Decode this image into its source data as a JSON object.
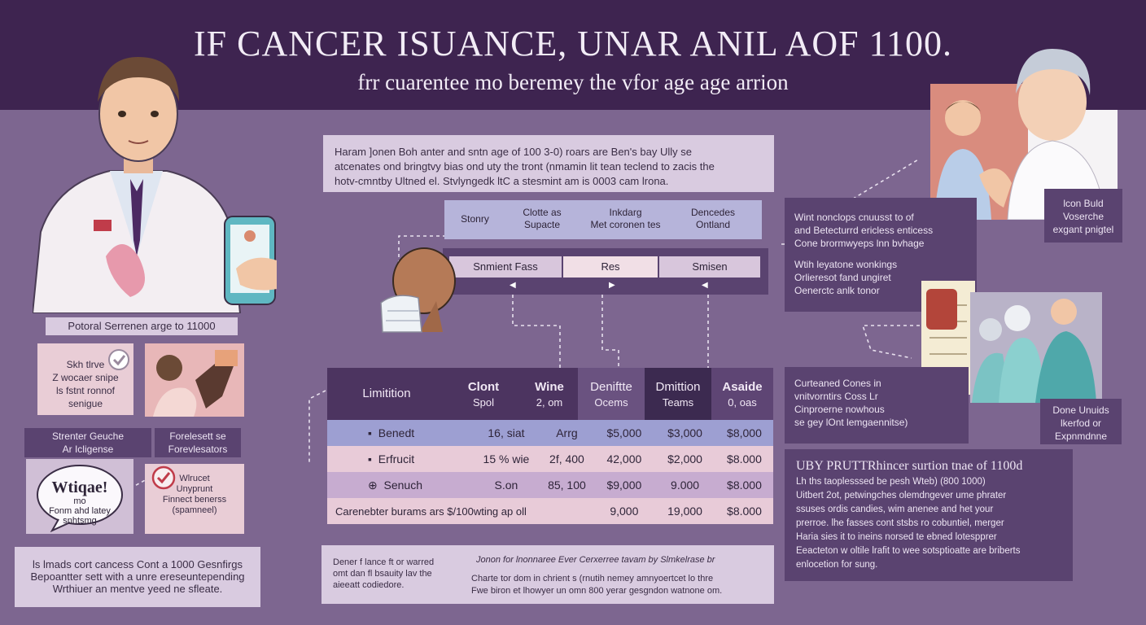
{
  "header": {
    "title": "IF CANCER ISUANCE, UNAR ANIL AOF 1100.",
    "subtitle": "frr cuarentee mo beremey the vfor age age arrion"
  },
  "intro_box": {
    "line1": "Haram ]onen Boh anter  and  sntn age of 100 3-0) roars  are Ben's bay Ully se",
    "line2": "atcenates ond bringtvy bias ond uty the tront (nmamin lit tean teclend to zacis the",
    "line3": "hotv-cmntby Ultned el. Stvlyngedk ltC a stesmint am is 0003 cam lrona."
  },
  "category_bar": {
    "items": [
      "Stonry",
      "Clotte as\nSupacte",
      "Inkdarg\nMet coronen tes",
      "Dencedes\nOntland"
    ]
  },
  "selector_bar": {
    "items": [
      "Snmient Fass",
      "Res",
      "Smisen"
    ]
  },
  "left_panel": {
    "label": "Potoral Serrenen arge to 11000",
    "card1_text": "Skh tlrve\nZ wocaer snipe\nls fstnt ronnof\nsenigue",
    "label_a": "Strenter Geuche\nAr Icligense",
    "label_b": "Forelesett se\nForevlesators",
    "speech_text": "Wtiqae!",
    "speech_sub": "mo\nFonm ahd latey\nsnhtsmg",
    "card4_text": "Wlrucet\nUnyprunt\nFinnect benerss\n(spamneel)",
    "bottom_text": "ls lmads cort cancess Cont a 1000 Gesnfirgs\nBepoantter sett with a unre ereseuntepending\nWrthiuer an mentve yeed ne sfleate."
  },
  "table": {
    "headers": [
      {
        "title": "Limitition",
        "sub": ""
      },
      {
        "title": "Clont",
        "sub": "Spol"
      },
      {
        "title": "Wine",
        "sub": "2, om"
      },
      {
        "title": "Deniftte",
        "sub": "Ocems"
      },
      {
        "title": "Dmittion",
        "sub": "Teams"
      },
      {
        "title": "Asaide",
        "sub": "0, oas"
      }
    ],
    "rows": [
      {
        "icon": "▪",
        "name": "Benedt",
        "c1": "16, siat",
        "c2": "Arrg",
        "c3": "$5,000",
        "c4": "$3,000",
        "c5": "$8,000"
      },
      {
        "icon": "▪",
        "name": "Erfrucit",
        "c1": "15 % wie",
        "c2": "2f, 400",
        "c3": "42,000",
        "c4": "$2,000",
        "c5": "$8.000"
      },
      {
        "icon": "⊕",
        "name": "Senuch",
        "c1": "S.on",
        "c2": "85, 100",
        "c3": "$9,000",
        "c4": "9.000",
        "c5": "$8.000"
      },
      {
        "name": "Carenebter burams ars $/100wting ap oll",
        "c3": "9,000",
        "c4": "19,000",
        "c5": "$8.000"
      }
    ]
  },
  "bottom_box": {
    "left": "Dener f lance ft or warred\nomt dan fl bsauity lav the\naieeatt codiedore.",
    "right_title": "Jonon for lnonnaree Ever Cerxerree tavam by Slmkelrase br",
    "right_body": "Charte tor dom in chrient s (rnutih nemey amnyoertcet lo thre\nFwe biron et lhowyer un omn 800 yerar gesgndon watnone om."
  },
  "right_panel": {
    "side_label": "lcon Buld\nVoserche\nexgant pnigtel",
    "info_a": "Wint nonclops cnuusst to of\nand Betecturrd ericless enticess\nCone brormwyeps lnn bvhage",
    "info_b": "Wtih leyatone wonkings\nOrlieresot fand ungiret\nOenerctc anlk tonor",
    "case_text": "Curteaned Cones in\nvnitvorntirs Coss Lr\nCinproerne nowhous\nse gey lOnt lemgaennitse)",
    "name_tag": "Done Unuids\nlkerfod or\nExpnmdnne",
    "block_title": "UBY PRUTTRhincer surtion  tnae of  1100d",
    "block_body": "Lh ths taoplesssed be pesh Wteb) (800 1000)\nUitbert 2ot, petwingches olemdngever ume phrater\nssuses ordis candies, wim  anenee  and  het  your\nprerroe. lhe fasses cont  stsbs  ro  cobuntiel,  merger\nHaria sies it  to ineins norsed  te  ebned  lotespprer\nEeacteton w oltile lrafit to wee sotsptioatte are briberts\nenlocetion for sung."
  },
  "colors": {
    "bg": "#7d6690",
    "header": "#3e2450",
    "table_head": "#4c3460",
    "row_blue": "#9d9fd2",
    "row_pink": "#e8cbd8",
    "row_lilac": "#c7acd0"
  }
}
